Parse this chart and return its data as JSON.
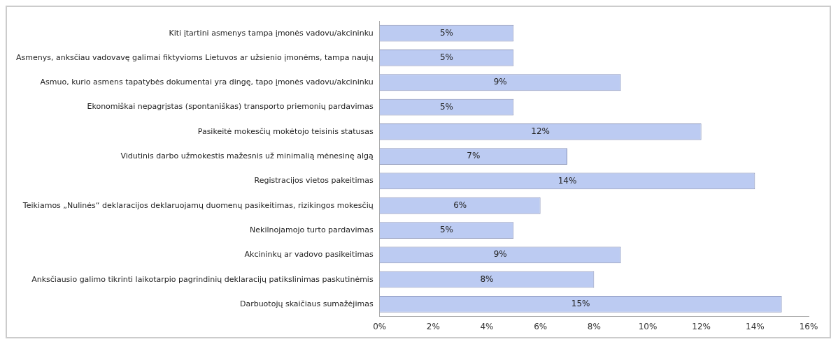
{
  "chart_data": {
    "type": "bar",
    "orientation": "horizontal",
    "categories": [
      "Kiti įtartini asmenys tampa įmonės vadovu/akcininku",
      "Asmenys, anksčiau vadovavę galimai fiktyvioms Lietuvos ar užsienio įmonėms, tampa naujų",
      "Asmuo, kurio asmens tapatybės dokumentai yra dingę, tapo įmonės vadovu/akcininku",
      "Ekonomiškai nepagrįstas (spontaniškas) transporto priemonių pardavimas",
      "Pasikeitė mokesčių mokėtojo teisinis statusas",
      "Vidutinis darbo užmokestis mažesnis už minimalią mėnesinę algą",
      "Registracijos vietos pakeitimas",
      "Teikiamos „Nulinės“ deklaracijos deklaruojamų duomenų pasikeitimas, rizikingos mokesčių",
      "Nekilnojamojo turto pardavimas",
      "Akcininkų ar vadovo pasikeitimas",
      "Anksčiausio galimo tikrinti laikotarpio pagrindinių deklaracijų patikslinimas paskutinėmis",
      "Darbuotojų skaičiaus sumažėjimas"
    ],
    "values": [
      5,
      5,
      9,
      5,
      12,
      7,
      14,
      6,
      5,
      9,
      8,
      15
    ],
    "value_labels": [
      "5%",
      "5%",
      "9%",
      "5%",
      "12%",
      "7%",
      "14%",
      "6%",
      "5%",
      "9%",
      "8%",
      "15%"
    ],
    "color": "#bccbf2",
    "xlim": [
      0,
      16
    ],
    "xticks": [
      {
        "value": 0,
        "label": "0%"
      },
      {
        "value": 2,
        "label": "2%"
      },
      {
        "value": 4,
        "label": "4%"
      },
      {
        "value": 6,
        "label": "6%"
      },
      {
        "value": 8,
        "label": "8%"
      },
      {
        "value": 10,
        "label": "10%"
      },
      {
        "value": 12,
        "label": "12%"
      },
      {
        "value": 14,
        "label": "14%"
      },
      {
        "value": 16,
        "label": "16%"
      }
    ],
    "grid": false,
    "legend": false
  }
}
